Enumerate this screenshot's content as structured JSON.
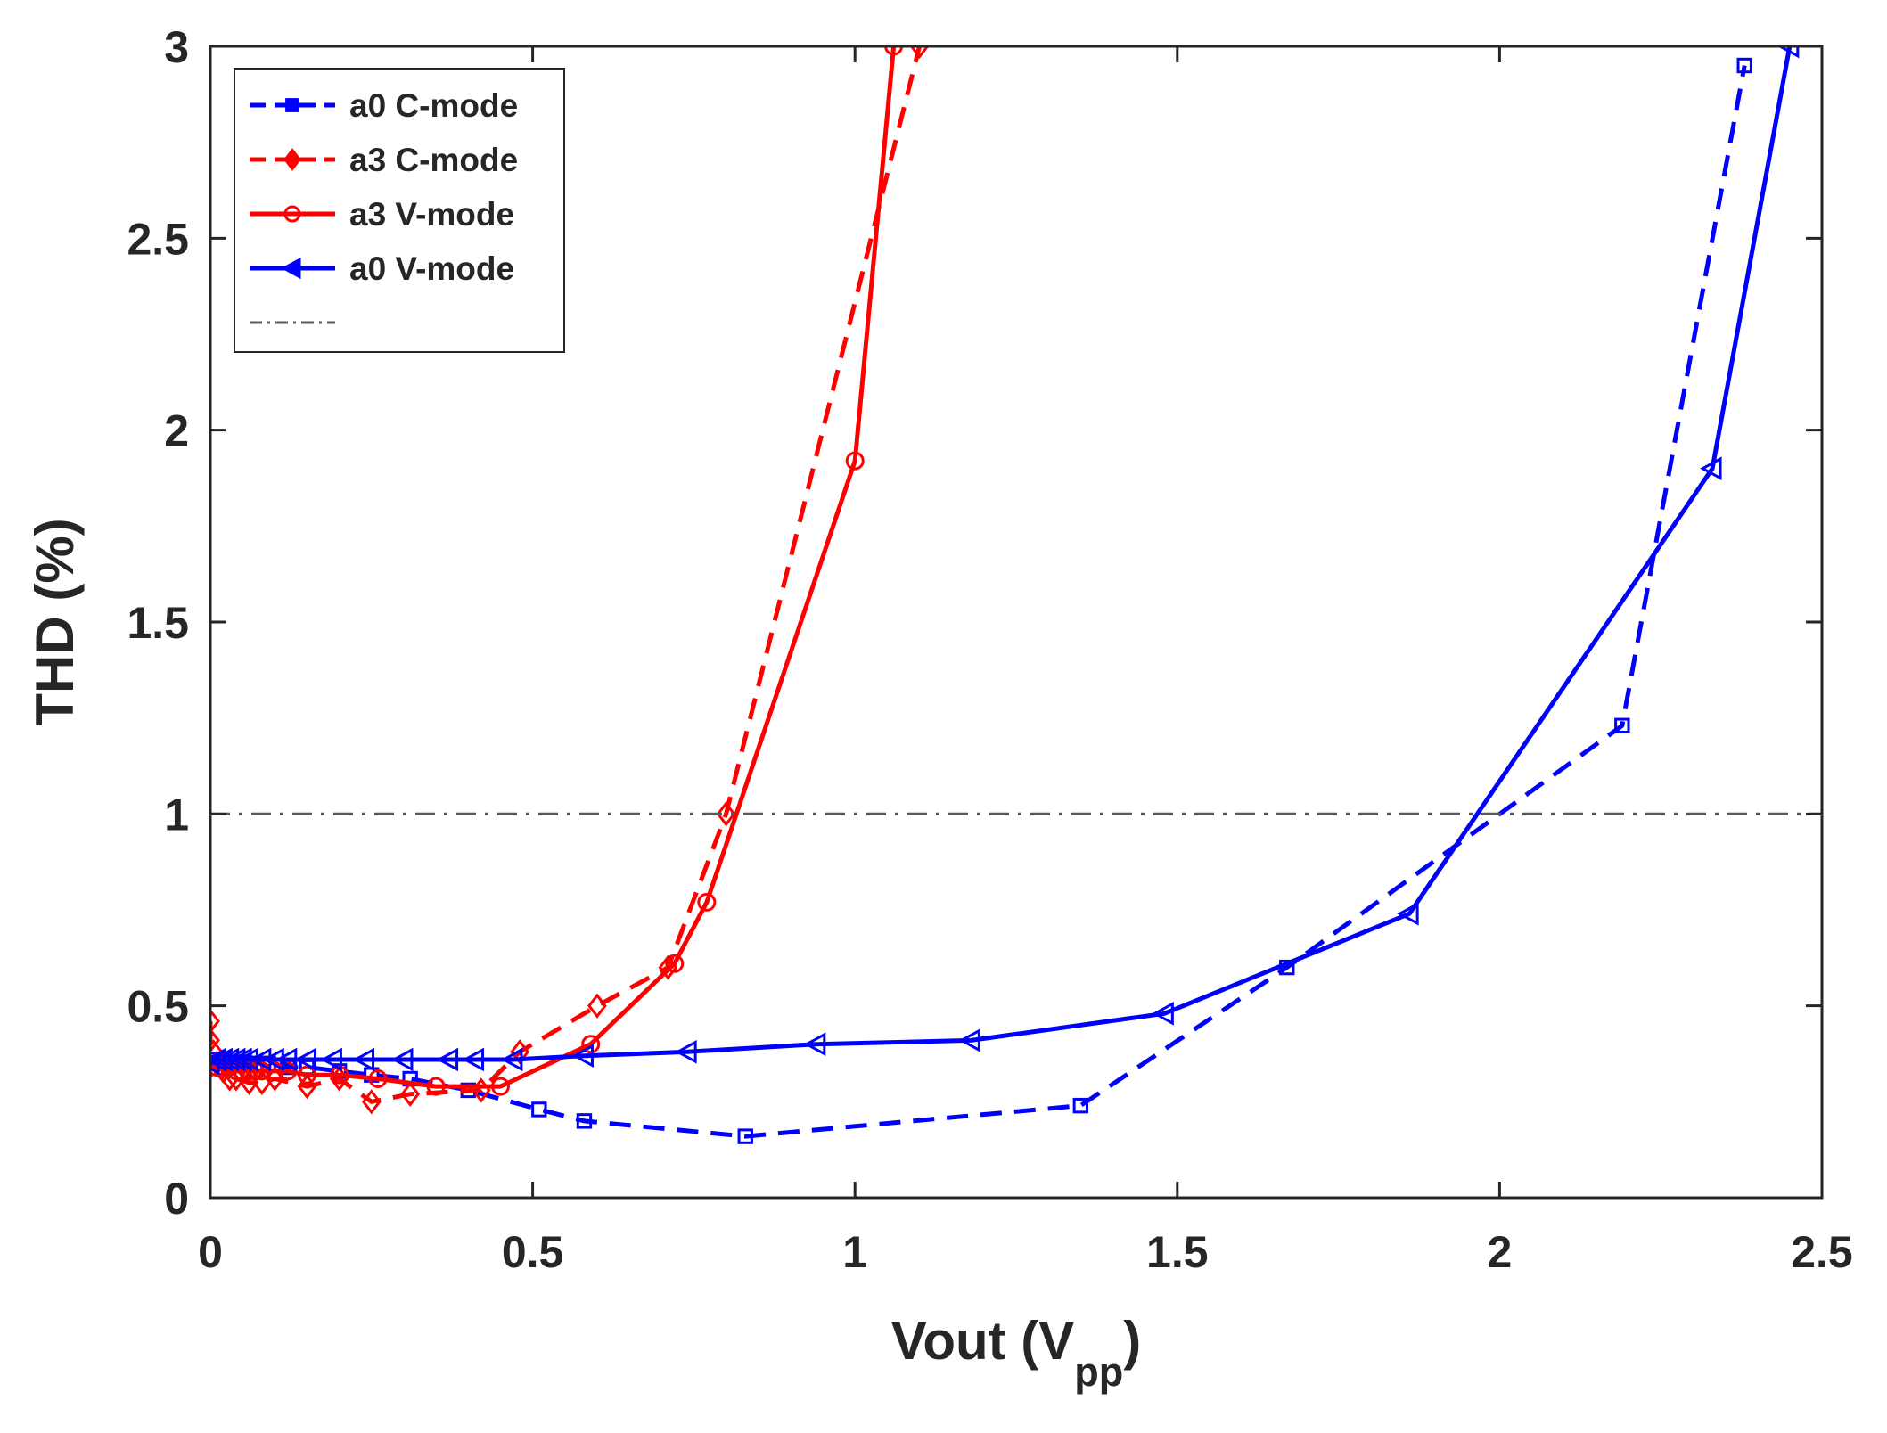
{
  "chart_data": {
    "type": "line",
    "title": "",
    "xlabel": "Vout (V",
    "xlabel_sub": "pp",
    "xlabel_suffix": ")",
    "ylabel": "THD (%)",
    "xlim": [
      0,
      2.5
    ],
    "ylim": [
      0,
      3
    ],
    "x_ticks": [
      0,
      0.5,
      1,
      1.5,
      2,
      2.5
    ],
    "y_ticks": [
      0,
      0.5,
      1,
      1.5,
      2,
      2.5,
      3
    ],
    "x_tick_labels": [
      "0",
      "0.5",
      "1",
      "1.5",
      "2",
      "2.5"
    ],
    "y_tick_labels": [
      "0",
      "0.5",
      "1",
      "1.5",
      "2",
      "2.5",
      "3"
    ],
    "grid": false,
    "legend_position": "top-left",
    "series": [
      {
        "name": "a0 C-mode",
        "color": "#0000ff",
        "dash": "dashed",
        "marker": "square",
        "x": [
          0.0,
          0.01,
          0.02,
          0.03,
          0.04,
          0.05,
          0.07,
          0.09,
          0.12,
          0.15,
          0.2,
          0.25,
          0.31,
          0.4,
          0.51,
          0.58,
          0.83,
          1.35,
          1.67,
          2.19,
          2.38
        ],
        "y": [
          0.36,
          0.36,
          0.36,
          0.35,
          0.35,
          0.35,
          0.35,
          0.35,
          0.34,
          0.34,
          0.33,
          0.32,
          0.31,
          0.28,
          0.23,
          0.2,
          0.16,
          0.24,
          0.6,
          1.23,
          2.95
        ]
      },
      {
        "name": "a3 C-mode",
        "color": "#ff0000",
        "dash": "dashed",
        "marker": "diamond",
        "x": [
          0.0,
          0.0,
          0.005,
          0.01,
          0.02,
          0.03,
          0.04,
          0.06,
          0.08,
          0.1,
          0.15,
          0.2,
          0.25,
          0.31,
          0.42,
          0.48,
          0.6,
          0.71,
          0.8,
          1.1
        ],
        "y": [
          0.46,
          0.41,
          0.38,
          0.35,
          0.33,
          0.31,
          0.31,
          0.3,
          0.3,
          0.31,
          0.29,
          0.31,
          0.25,
          0.27,
          0.28,
          0.38,
          0.5,
          0.6,
          1.0,
          3.0
        ]
      },
      {
        "name": "a3 V-mode",
        "color": "#ff0000",
        "dash": "solid",
        "marker": "circle",
        "x": [
          0.0,
          0.01,
          0.02,
          0.03,
          0.04,
          0.05,
          0.06,
          0.07,
          0.08,
          0.1,
          0.12,
          0.15,
          0.2,
          0.26,
          0.35,
          0.45,
          0.59,
          0.72,
          0.77,
          1.0,
          1.06
        ],
        "y": [
          0.34,
          0.34,
          0.34,
          0.34,
          0.33,
          0.33,
          0.33,
          0.33,
          0.33,
          0.33,
          0.33,
          0.32,
          0.32,
          0.31,
          0.29,
          0.29,
          0.4,
          0.61,
          0.77,
          1.92,
          3.0
        ]
      },
      {
        "name": "a0 V-mode",
        "color": "#0000ff",
        "dash": "solid",
        "marker": "triangle-left",
        "x": [
          0.0,
          0.01,
          0.02,
          0.03,
          0.04,
          0.05,
          0.06,
          0.08,
          0.1,
          0.12,
          0.15,
          0.19,
          0.24,
          0.3,
          0.37,
          0.41,
          0.47,
          0.58,
          0.74,
          0.94,
          1.18,
          1.48,
          1.86,
          2.33,
          2.45
        ],
        "y": [
          0.35,
          0.36,
          0.36,
          0.36,
          0.36,
          0.36,
          0.36,
          0.36,
          0.36,
          0.36,
          0.36,
          0.36,
          0.36,
          0.36,
          0.36,
          0.36,
          0.36,
          0.37,
          0.38,
          0.4,
          0.41,
          0.48,
          0.74,
          1.9,
          3.0
        ]
      },
      {
        "name": "",
        "color": "#595959",
        "dash": "dashdot",
        "marker": "none",
        "x": [
          0,
          2.5
        ],
        "y": [
          1,
          1
        ]
      }
    ]
  }
}
